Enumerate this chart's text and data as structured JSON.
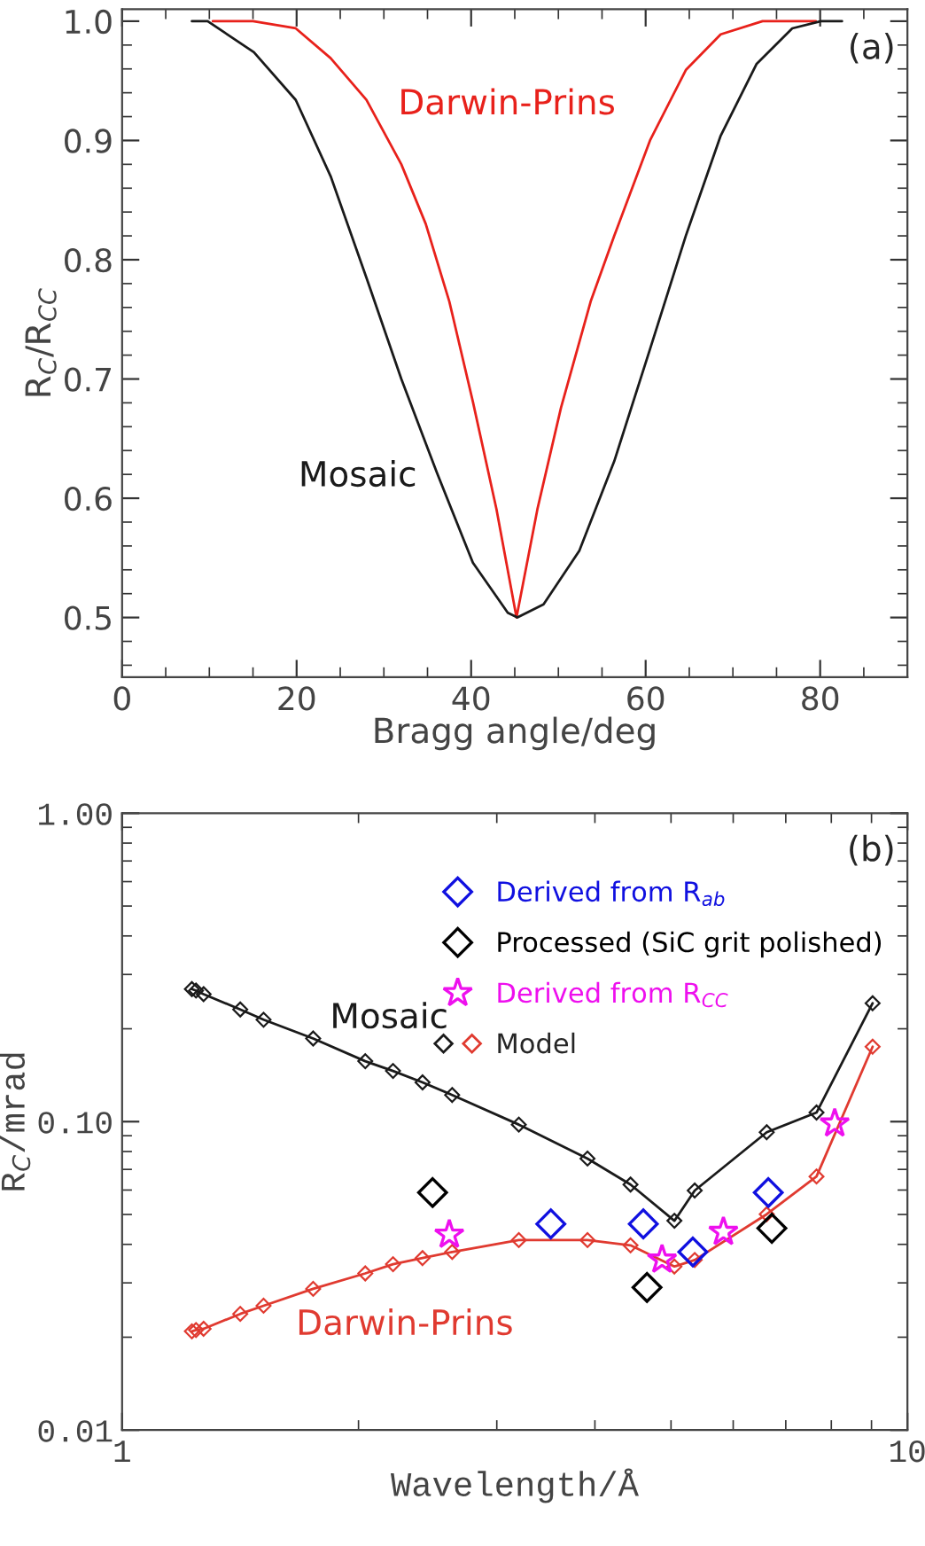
{
  "chart_data": [
    {
      "type": "line",
      "xlabel": "Bragg angle/deg",
      "ylabel": "R$_{C}$/R$_{CC}$",
      "annotations": [
        "(a)"
      ],
      "xlim": [
        0,
        90
      ],
      "ylim": [
        0.45,
        1.01
      ],
      "xticks": [
        0,
        20,
        40,
        60,
        80
      ],
      "yticks": [
        0.5,
        0.6,
        0.7,
        0.8,
        0.9,
        {
          "value": 1.0,
          "label": "1.0"
        }
      ],
      "legend": false,
      "marker": "none",
      "grid": false,
      "series": [
        {
          "name": "Darwin-Prins",
          "color": "#e8211b",
          "x": [
            10.4,
            15,
            19.9,
            23.9,
            28,
            32,
            34.8,
            37.5,
            40.2,
            42.9,
            45.2,
            47.6,
            50.3,
            53.7,
            56.4,
            60.5,
            64.6,
            68.6,
            73.4,
            79.5
          ],
          "values": [
            1.0,
            1.0,
            0.994,
            0.969,
            0.934,
            0.88,
            0.83,
            0.765,
            0.681,
            0.591,
            0.5,
            0.591,
            0.676,
            0.765,
            0.82,
            0.9,
            0.959,
            0.989,
            1.0,
            1.0
          ]
        },
        {
          "name": "Mosaic",
          "color": "#1a1a1a",
          "x": [
            8,
            9.8,
            15.1,
            19.9,
            23.9,
            28,
            32,
            36.1,
            40.2,
            44.2,
            45.3,
            48.3,
            52.4,
            56.4,
            60.5,
            64.6,
            68.6,
            72.7,
            76.8,
            80.1,
            82.5
          ],
          "values": [
            1.0,
            1.0,
            0.974,
            0.934,
            0.87,
            0.785,
            0.7,
            0.621,
            0.546,
            0.504,
            0.5,
            0.511,
            0.556,
            0.631,
            0.725,
            0.82,
            0.904,
            0.964,
            0.994,
            1.0,
            1.0
          ]
        }
      ]
    },
    {
      "type": "line",
      "xlabel": "Wavelength/Å",
      "ylabel": "R$_{C}$/mrad",
      "annotations": [
        "(b)",
        "Model"
      ],
      "log": "xy",
      "xlim": [
        1,
        10
      ],
      "ylim": [
        0.01,
        1
      ],
      "xticks": [
        1,
        10
      ],
      "yticks": [
        {
          "value": 0.01,
          "label": "0.01"
        },
        {
          "value": 0.1,
          "label": "0.10"
        },
        {
          "value": 1,
          "label": "1.00"
        }
      ],
      "legend": "top right",
      "grid": false,
      "series": [
        {
          "name": "Mosaic",
          "color": "#1a1a1a",
          "marker": "diamond",
          "x": [
            1.227,
            1.242,
            1.27,
            1.414,
            1.514,
            1.751,
            2.04,
            2.213,
            2.413,
            2.632,
            3.2,
            3.914,
            4.44,
            5.05,
            5.36,
            6.62,
            7.66,
            9.03
          ],
          "values": [
            0.269,
            0.266,
            0.259,
            0.231,
            0.214,
            0.186,
            0.157,
            0.146,
            0.134,
            0.122,
            0.0978,
            0.0759,
            0.0625,
            0.0477,
            0.0598,
            0.0924,
            0.107,
            0.242
          ]
        },
        {
          "name": "Darwin-Prins",
          "color": "#e03a30",
          "marker": "diamond",
          "x": [
            1.227,
            1.242,
            1.27,
            1.414,
            1.514,
            1.751,
            2.04,
            2.213,
            2.413,
            2.632,
            3.2,
            3.914,
            4.44,
            5.05,
            5.36,
            6.62,
            7.66,
            9.03
          ],
          "values": [
            0.0209,
            0.0211,
            0.0213,
            0.0238,
            0.0253,
            0.0287,
            0.0322,
            0.0345,
            0.0361,
            0.0378,
            0.0413,
            0.0413,
            0.0397,
            0.0339,
            0.0356,
            0.0501,
            0.0664,
            0.175
          ]
        },
        {
          "name": "Derived from R$_{ab}$",
          "type": "scatter",
          "color": "#1010e0",
          "marker": "diamond",
          "x": [
            3.515,
            4.61,
            5.33,
            6.65
          ],
          "values": [
            0.0466,
            0.0466,
            0.0378,
            0.0589
          ]
        },
        {
          "name": "Processed (SiC grit polished)",
          "type": "scatter",
          "color": "#000000",
          "marker": "diamond",
          "x": [
            2.485,
            4.66,
            6.72
          ],
          "values": [
            0.0589,
            0.029,
            0.0451
          ]
        },
        {
          "name": "Derived from R$_{CC}$",
          "type": "scatter",
          "color": "#ee10ee",
          "marker": "star",
          "x": [
            2.61,
            4.87,
            5.83,
            8.08
          ],
          "values": [
            0.043,
            0.0357,
            0.0439,
            0.0986
          ]
        }
      ]
    }
  ]
}
